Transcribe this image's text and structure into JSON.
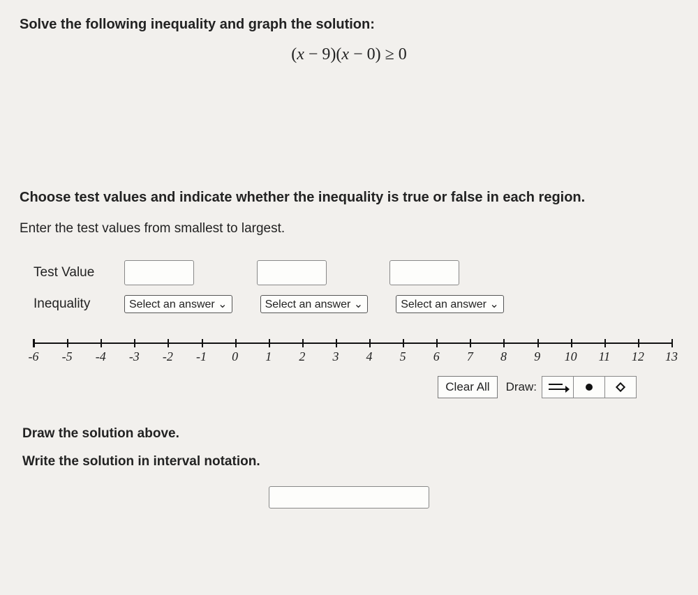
{
  "prompt": "Solve the following inequality and graph the solution:",
  "equation": {
    "plain": "(x − 9)(x − 0) ≥ 0"
  },
  "choose_text": "Choose test values and indicate whether the inequality is true or false in each region.",
  "enter_text": "Enter the test values from smallest to largest.",
  "rows": {
    "test_value_label": "Test Value",
    "inequality_label": "Inequality",
    "select_placeholder": "Select an answer ⌄"
  },
  "numberline": {
    "min": -6,
    "max": 13,
    "ticks": [
      {
        "v": -6,
        "label": "-6"
      },
      {
        "v": -5,
        "label": "-5"
      },
      {
        "v": -4,
        "label": "-4"
      },
      {
        "v": -3,
        "label": "-3"
      },
      {
        "v": -2,
        "label": "-2"
      },
      {
        "v": -1,
        "label": "-1"
      },
      {
        "v": 0,
        "label": "0"
      },
      {
        "v": 1,
        "label": "1"
      },
      {
        "v": 2,
        "label": "2"
      },
      {
        "v": 3,
        "label": "3"
      },
      {
        "v": 4,
        "label": "4"
      },
      {
        "v": 5,
        "label": "5"
      },
      {
        "v": 6,
        "label": "6"
      },
      {
        "v": 7,
        "label": "7"
      },
      {
        "v": 8,
        "label": "8"
      },
      {
        "v": 9,
        "label": "9"
      },
      {
        "v": 10,
        "label": "10"
      },
      {
        "v": 11,
        "label": "11"
      },
      {
        "v": 12,
        "label": "12"
      },
      {
        "v": 13,
        "label": "13"
      }
    ],
    "axis_color": "#111111",
    "label_font": "Comic Sans MS",
    "label_fontsize": 18
  },
  "toolbar": {
    "clear_all": "Clear All",
    "draw_label": "Draw:"
  },
  "draw_solution_label": "Draw the solution above.",
  "write_solution_label": "Write the solution in interval notation.",
  "colors": {
    "background": "#f2f0ed",
    "text": "#222222",
    "input_bg": "#fdfdfb",
    "border": "#888888"
  }
}
